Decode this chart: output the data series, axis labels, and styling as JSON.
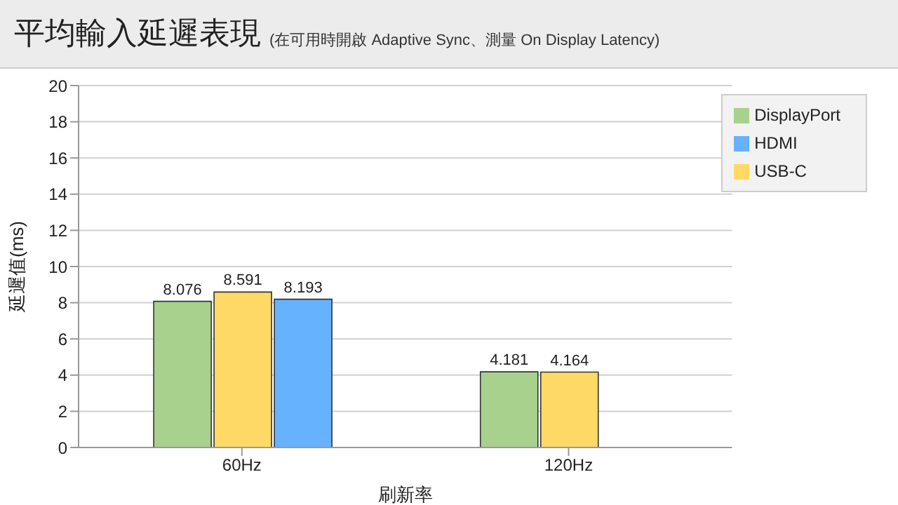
{
  "chart_data": {
    "type": "bar",
    "title": "平均輸入延遲表現",
    "subtitle": "(在可用時開啟 Adaptive Sync、測量 On Display Latency)",
    "xlabel": "刷新率",
    "ylabel": "延遲值(ms)",
    "categories": [
      "60Hz",
      "120Hz"
    ],
    "series": [
      {
        "name": "DisplayPort",
        "color": "#a9d18e",
        "values": [
          8.076,
          4.181
        ]
      },
      {
        "name": "USB-C",
        "color": "#ffd966",
        "values": [
          8.591,
          4.164
        ]
      },
      {
        "name": "HDMI",
        "color": "#66b2ff",
        "values": [
          8.193,
          null
        ]
      }
    ],
    "ylim": [
      0,
      20
    ],
    "yticks": [
      0,
      2,
      4,
      6,
      8,
      10,
      12,
      14,
      16,
      18,
      20
    ],
    "grid": "y",
    "legend": "top right",
    "data_labels": true
  }
}
